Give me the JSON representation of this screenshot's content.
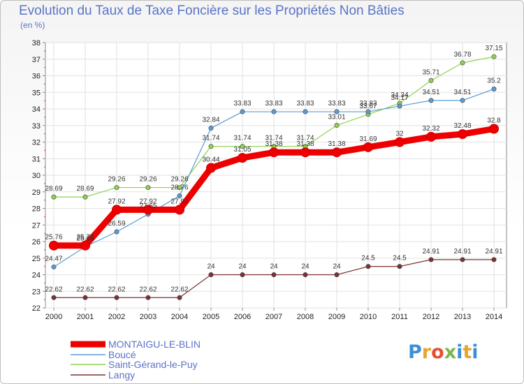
{
  "title": "Evolution du Taux de Taxe Foncière sur les Propriétés Non Bâties",
  "unit_label": "(en %)",
  "logo": {
    "text": "Proxiti",
    "colors": [
      "#3e8ed6",
      "#e8a52c",
      "#e94e34",
      "#7ab648",
      "#3e8ed6",
      "#e8a52c",
      "#3e8ed6"
    ]
  },
  "chart_data": {
    "type": "line",
    "x": [
      2000,
      2001,
      2002,
      2003,
      2004,
      2005,
      2006,
      2007,
      2008,
      2009,
      2010,
      2011,
      2012,
      2013,
      2014
    ],
    "ylim": [
      22,
      38
    ],
    "yticks": [
      22,
      23,
      24,
      25,
      26,
      27,
      28,
      29,
      30,
      31,
      32,
      33,
      34,
      35,
      36,
      37,
      38
    ],
    "grid": true,
    "legend_position": "bottom-left",
    "series": [
      {
        "name": "MONTAIGU-LE-BLIN",
        "color": "#ee0000",
        "width": 9,
        "values": [
          25.76,
          25.76,
          27.92,
          27.92,
          27.92,
          30.44,
          31.05,
          31.38,
          31.38,
          31.38,
          31.69,
          32,
          32.32,
          32.48,
          32.8
        ],
        "labels": [
          "25.76",
          "25.76",
          "27.92",
          "27.92",
          "27.92",
          "30.44",
          "31.05",
          "31.38",
          "31.38",
          "31.38",
          "31.69",
          "32",
          "32.32",
          "32.48",
          "32.8"
        ]
      },
      {
        "name": "Boucé",
        "color": "#5b9bd5",
        "width": 1.2,
        "values": [
          24.47,
          25.69,
          26.59,
          27.65,
          28.76,
          32.84,
          33.83,
          33.83,
          33.83,
          33.83,
          33.83,
          34.17,
          34.51,
          34.51,
          35.2
        ],
        "labels": [
          "24.47",
          "25.69",
          "26.59",
          "27.65",
          "28.76",
          "32.84",
          "33.83",
          "33.83",
          "33.83",
          "33.83",
          "33.83",
          "34.17",
          "34.51",
          "34.51",
          "35.2"
        ]
      },
      {
        "name": "Saint-Gérand-le-Puy",
        "color": "#8fd14f",
        "width": 1.2,
        "values": [
          28.69,
          28.69,
          29.26,
          29.26,
          29.26,
          31.74,
          31.74,
          31.74,
          31.74,
          33.01,
          33.67,
          34.34,
          35.71,
          36.78,
          37.15
        ],
        "labels": [
          "28.69",
          "28.69",
          "29.26",
          "29.26",
          "29.26",
          "31.74",
          "31.74",
          "31.74",
          "31.74",
          "33.01",
          "33.67",
          "34.34",
          "35.71",
          "36.78",
          "37.15"
        ]
      },
      {
        "name": "Langy",
        "color": "#7b3232",
        "width": 1.2,
        "values": [
          22.62,
          22.62,
          22.62,
          22.62,
          22.62,
          24,
          24,
          24,
          24,
          24,
          24.5,
          24.5,
          24.91,
          24.91,
          24.91
        ],
        "labels": [
          "22.62",
          "22.62",
          "22.62",
          "22.62",
          "22.62",
          "24",
          "24",
          "24",
          "24",
          "24",
          "24.5",
          "24.5",
          "24.91",
          "24.91",
          "24.91"
        ]
      }
    ]
  }
}
